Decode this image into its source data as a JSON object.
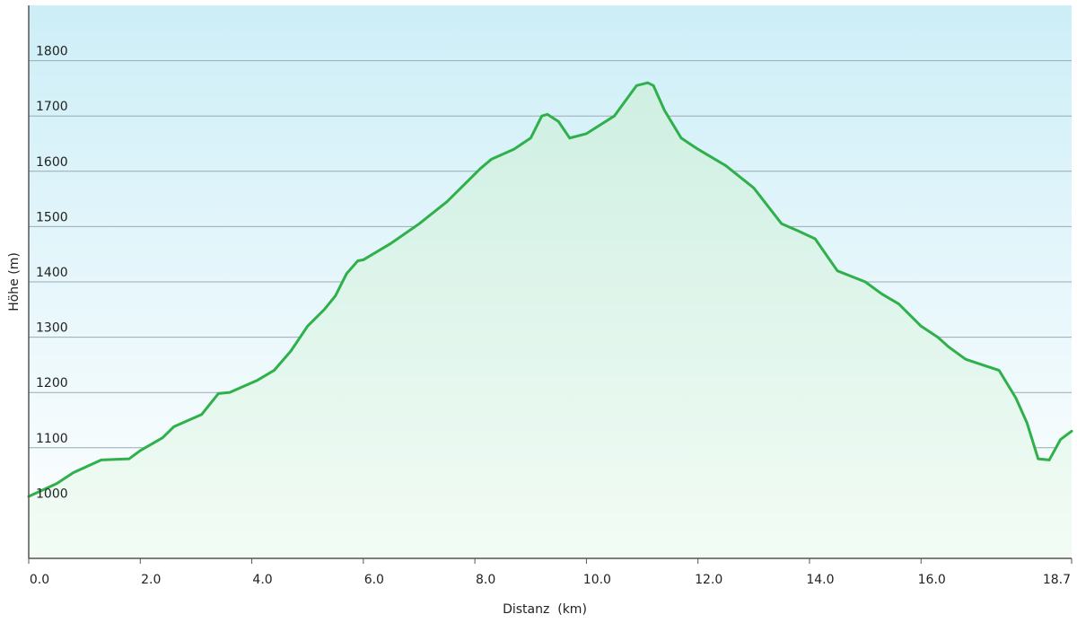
{
  "chart_data": {
    "type": "area",
    "xlabel": "Distanz  (km)",
    "ylabel": "Höhe (m)",
    "xlim": [
      0,
      18.7
    ],
    "ylim": [
      900,
      1900
    ],
    "grid": true,
    "x_ticks": [
      {
        "value": 0,
        "label": "0.0"
      },
      {
        "value": 2,
        "label": "2.0"
      },
      {
        "value": 4,
        "label": "4.0"
      },
      {
        "value": 6,
        "label": "6.0"
      },
      {
        "value": 8,
        "label": "8.0"
      },
      {
        "value": 10,
        "label": "10.0"
      },
      {
        "value": 12,
        "label": "12.0"
      },
      {
        "value": 14,
        "label": "14.0"
      },
      {
        "value": 16,
        "label": "16.0"
      },
      {
        "value": 18.7,
        "label": "18.7"
      }
    ],
    "y_ticks": [
      {
        "value": 1000,
        "label": "1000"
      },
      {
        "value": 1100,
        "label": "1100"
      },
      {
        "value": 1200,
        "label": "1200"
      },
      {
        "value": 1300,
        "label": "1300"
      },
      {
        "value": 1400,
        "label": "1400"
      },
      {
        "value": 1500,
        "label": "1500"
      },
      {
        "value": 1600,
        "label": "1600"
      },
      {
        "value": 1700,
        "label": "1700"
      },
      {
        "value": 1800,
        "label": "1800"
      }
    ],
    "x": [
      0,
      0.5,
      0.8,
      1.3,
      1.8,
      2.0,
      2.4,
      2.6,
      3.1,
      3.4,
      3.6,
      4.1,
      4.4,
      4.7,
      5.0,
      5.3,
      5.5,
      5.7,
      5.9,
      6.0,
      6.5,
      7.0,
      7.5,
      7.8,
      8.1,
      8.3,
      8.7,
      9.0,
      9.2,
      9.3,
      9.5,
      9.7,
      10.0,
      10.5,
      10.9,
      11.1,
      11.2,
      11.4,
      11.7,
      12.0,
      12.5,
      13.0,
      13.5,
      13.8,
      14.1,
      14.5,
      15.0,
      15.3,
      15.6,
      16.0,
      16.3,
      16.5,
      16.8,
      17.1,
      17.4,
      17.7,
      17.9,
      18.1,
      18.3,
      18.5,
      18.7
    ],
    "values": [
      1012,
      1035,
      1055,
      1078,
      1080,
      1095,
      1118,
      1138,
      1160,
      1198,
      1200,
      1222,
      1240,
      1275,
      1320,
      1350,
      1375,
      1415,
      1438,
      1440,
      1470,
      1505,
      1545,
      1575,
      1605,
      1622,
      1640,
      1660,
      1700,
      1703,
      1690,
      1660,
      1668,
      1700,
      1755,
      1760,
      1755,
      1710,
      1660,
      1640,
      1610,
      1570,
      1505,
      1492,
      1478,
      1420,
      1400,
      1378,
      1360,
      1320,
      1300,
      1282,
      1260,
      1250,
      1240,
      1190,
      1145,
      1080,
      1078,
      1115,
      1130
    ]
  }
}
